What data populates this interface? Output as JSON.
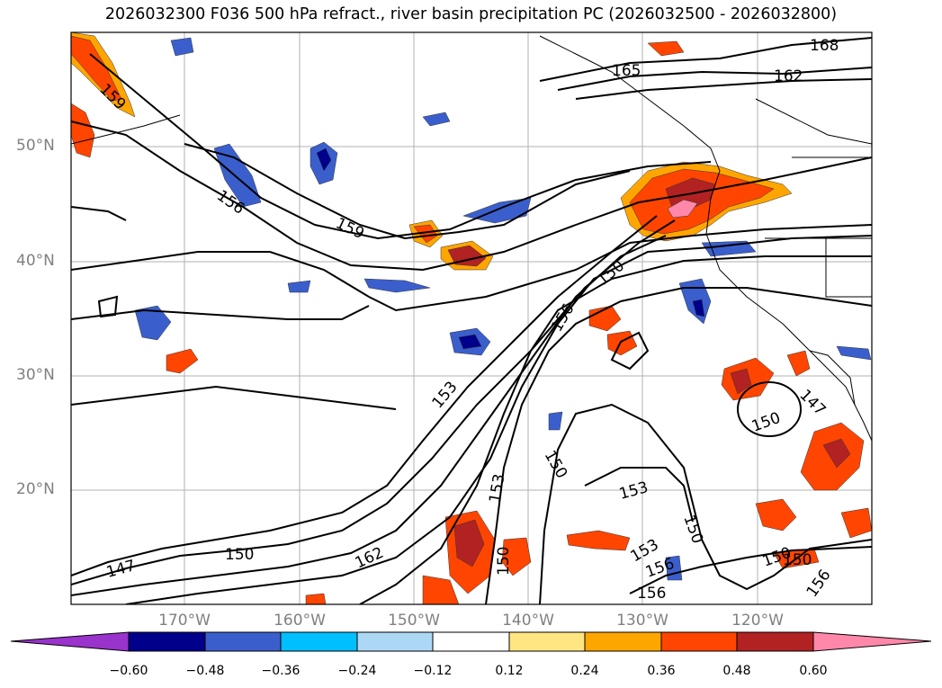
{
  "title": "2026032300 F036 500 hPa refract., river basin precipitation PC (2026032500 - 2026032800)",
  "map": {
    "lat_labels": [
      "50°N",
      "40°N",
      "30°N",
      "20°N"
    ],
    "lon_labels": [
      "170°W",
      "160°W",
      "150°W",
      "140°W",
      "130°W",
      "120°W"
    ],
    "contour_labels": [
      "168",
      "165",
      "162",
      "159",
      "159",
      "156",
      "156",
      "153",
      "153",
      "150",
      "150",
      "150",
      "150",
      "153",
      "153",
      "156",
      "162",
      "150",
      "147",
      "150",
      "156",
      "147",
      "150",
      "150",
      "156"
    ],
    "contour_color": "#000000",
    "grid_color": "#b0b0b0"
  },
  "colorbar": {
    "ticks": [
      "−0.60",
      "−0.48",
      "−0.36",
      "−0.24",
      "−0.12",
      "0.12",
      "0.24",
      "0.36",
      "0.48",
      "0.60"
    ],
    "colors": [
      "#9933cc",
      "#00008b",
      "#3a5fcd",
      "#00bfff",
      "#add8f5",
      "#ffffff",
      "#ffe680",
      "#ffa500",
      "#ff4500",
      "#b22222",
      "#ff88aa"
    ]
  }
}
